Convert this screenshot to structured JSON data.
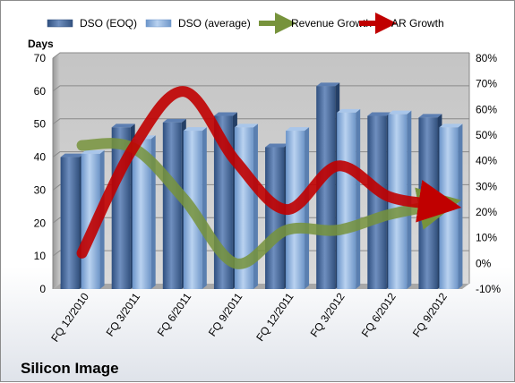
{
  "chart_data": {
    "type": "bar",
    "title": "",
    "company": "Silicon Image",
    "ylabel": "Days",
    "categories": [
      "FQ 12/2010",
      "FQ 3/2011",
      "FQ 6/2011",
      "FQ 9/2011",
      "FQ 12/2011",
      "FQ 3/2012",
      "FQ 6/2012",
      "FQ 9/2012"
    ],
    "ylim": [
      0,
      70
    ],
    "y_ticks": [
      0,
      10,
      20,
      30,
      40,
      50,
      60,
      70
    ],
    "y2lim": [
      -10,
      80
    ],
    "y2_ticks": [
      -10,
      0,
      10,
      20,
      30,
      40,
      50,
      60,
      70,
      80
    ],
    "y2_tick_labels": [
      "-10%",
      "0%",
      "10%",
      "20%",
      "30%",
      "40%",
      "50%",
      "60%",
      "70%",
      "80%"
    ],
    "grid": true,
    "legend_position": "top",
    "series": [
      {
        "name": "DSO (EOQ)",
        "type": "bar",
        "axis": "left",
        "color": "#4a6fa5",
        "values": [
          40,
          49,
          50.5,
          52.5,
          43,
          61.5,
          52.5,
          52
        ]
      },
      {
        "name": "DSO (average)",
        "type": "bar",
        "axis": "left",
        "color": "#8fb4e3",
        "values": [
          41,
          45.5,
          48,
          49,
          48,
          53.5,
          53,
          49
        ]
      },
      {
        "name": "Revenue Growth",
        "type": "line",
        "axis": "right",
        "color": "#77933c",
        "values": [
          46,
          45,
          25,
          0,
          13,
          13,
          19,
          23
        ]
      },
      {
        "name": "AR Growth",
        "type": "line",
        "axis": "right",
        "color": "#c00000",
        "values": [
          4,
          45,
          67,
          40,
          21,
          38,
          26,
          23
        ]
      }
    ]
  }
}
